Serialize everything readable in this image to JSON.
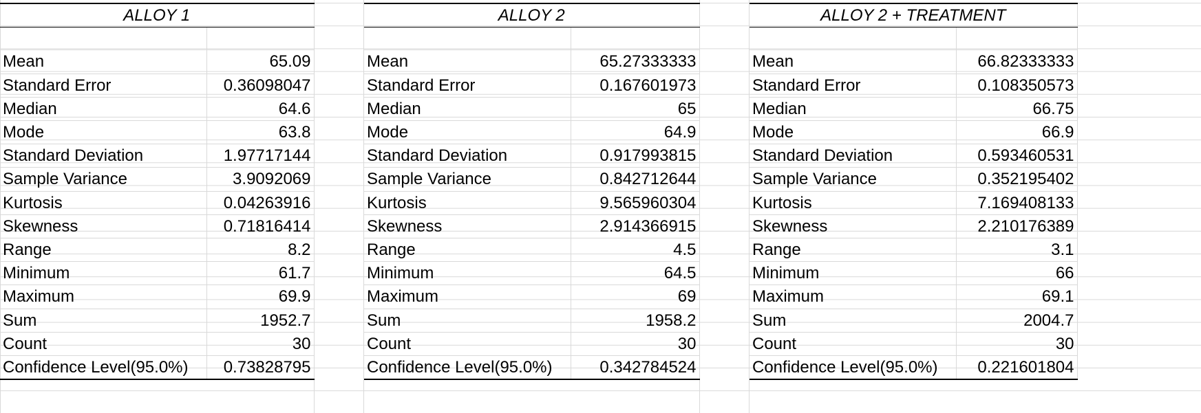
{
  "tables": [
    {
      "title": "ALLOY 1",
      "rows": [
        {
          "label": "Mean",
          "value": "65.09"
        },
        {
          "label": "Standard Error",
          "value": "0.36098047"
        },
        {
          "label": "Median",
          "value": "64.6"
        },
        {
          "label": "Mode",
          "value": "63.8"
        },
        {
          "label": "Standard Deviation",
          "value": "1.97717144"
        },
        {
          "label": "Sample Variance",
          "value": "3.9092069"
        },
        {
          "label": "Kurtosis",
          "value": "0.04263916"
        },
        {
          "label": "Skewness",
          "value": "0.71816414"
        },
        {
          "label": "Range",
          "value": "8.2"
        },
        {
          "label": "Minimum",
          "value": "61.7"
        },
        {
          "label": "Maximum",
          "value": "69.9"
        },
        {
          "label": "Sum",
          "value": "1952.7"
        },
        {
          "label": "Count",
          "value": "30"
        },
        {
          "label": "Confidence Level(95.0%)",
          "value": "0.73828795"
        }
      ]
    },
    {
      "title": "ALLOY 2",
      "rows": [
        {
          "label": "Mean",
          "value": "65.27333333"
        },
        {
          "label": "Standard Error",
          "value": "0.167601973"
        },
        {
          "label": "Median",
          "value": "65"
        },
        {
          "label": "Mode",
          "value": "64.9"
        },
        {
          "label": "Standard Deviation",
          "value": "0.917993815"
        },
        {
          "label": "Sample Variance",
          "value": "0.842712644"
        },
        {
          "label": "Kurtosis",
          "value": "9.565960304"
        },
        {
          "label": "Skewness",
          "value": "2.914366915"
        },
        {
          "label": "Range",
          "value": "4.5"
        },
        {
          "label": "Minimum",
          "value": "64.5"
        },
        {
          "label": "Maximum",
          "value": "69"
        },
        {
          "label": "Sum",
          "value": "1958.2"
        },
        {
          "label": "Count",
          "value": "30"
        },
        {
          "label": "Confidence Level(95.0%)",
          "value": "0.342784524"
        }
      ]
    },
    {
      "title": "ALLOY 2 + TREATMENT",
      "rows": [
        {
          "label": "Mean",
          "value": "66.82333333"
        },
        {
          "label": "Standard Error",
          "value": "0.108350573"
        },
        {
          "label": "Median",
          "value": "66.75"
        },
        {
          "label": "Mode",
          "value": "66.9"
        },
        {
          "label": "Standard Deviation",
          "value": "0.593460531"
        },
        {
          "label": "Sample Variance",
          "value": "0.352195402"
        },
        {
          "label": "Kurtosis",
          "value": "7.169408133"
        },
        {
          "label": "Skewness",
          "value": "2.210176389"
        },
        {
          "label": "Range",
          "value": "3.1"
        },
        {
          "label": "Minimum",
          "value": "66"
        },
        {
          "label": "Maximum",
          "value": "69.1"
        },
        {
          "label": "Sum",
          "value": "2004.7"
        },
        {
          "label": "Count",
          "value": "30"
        },
        {
          "label": "Confidence Level(95.0%)",
          "value": "0.221601804"
        }
      ]
    }
  ]
}
